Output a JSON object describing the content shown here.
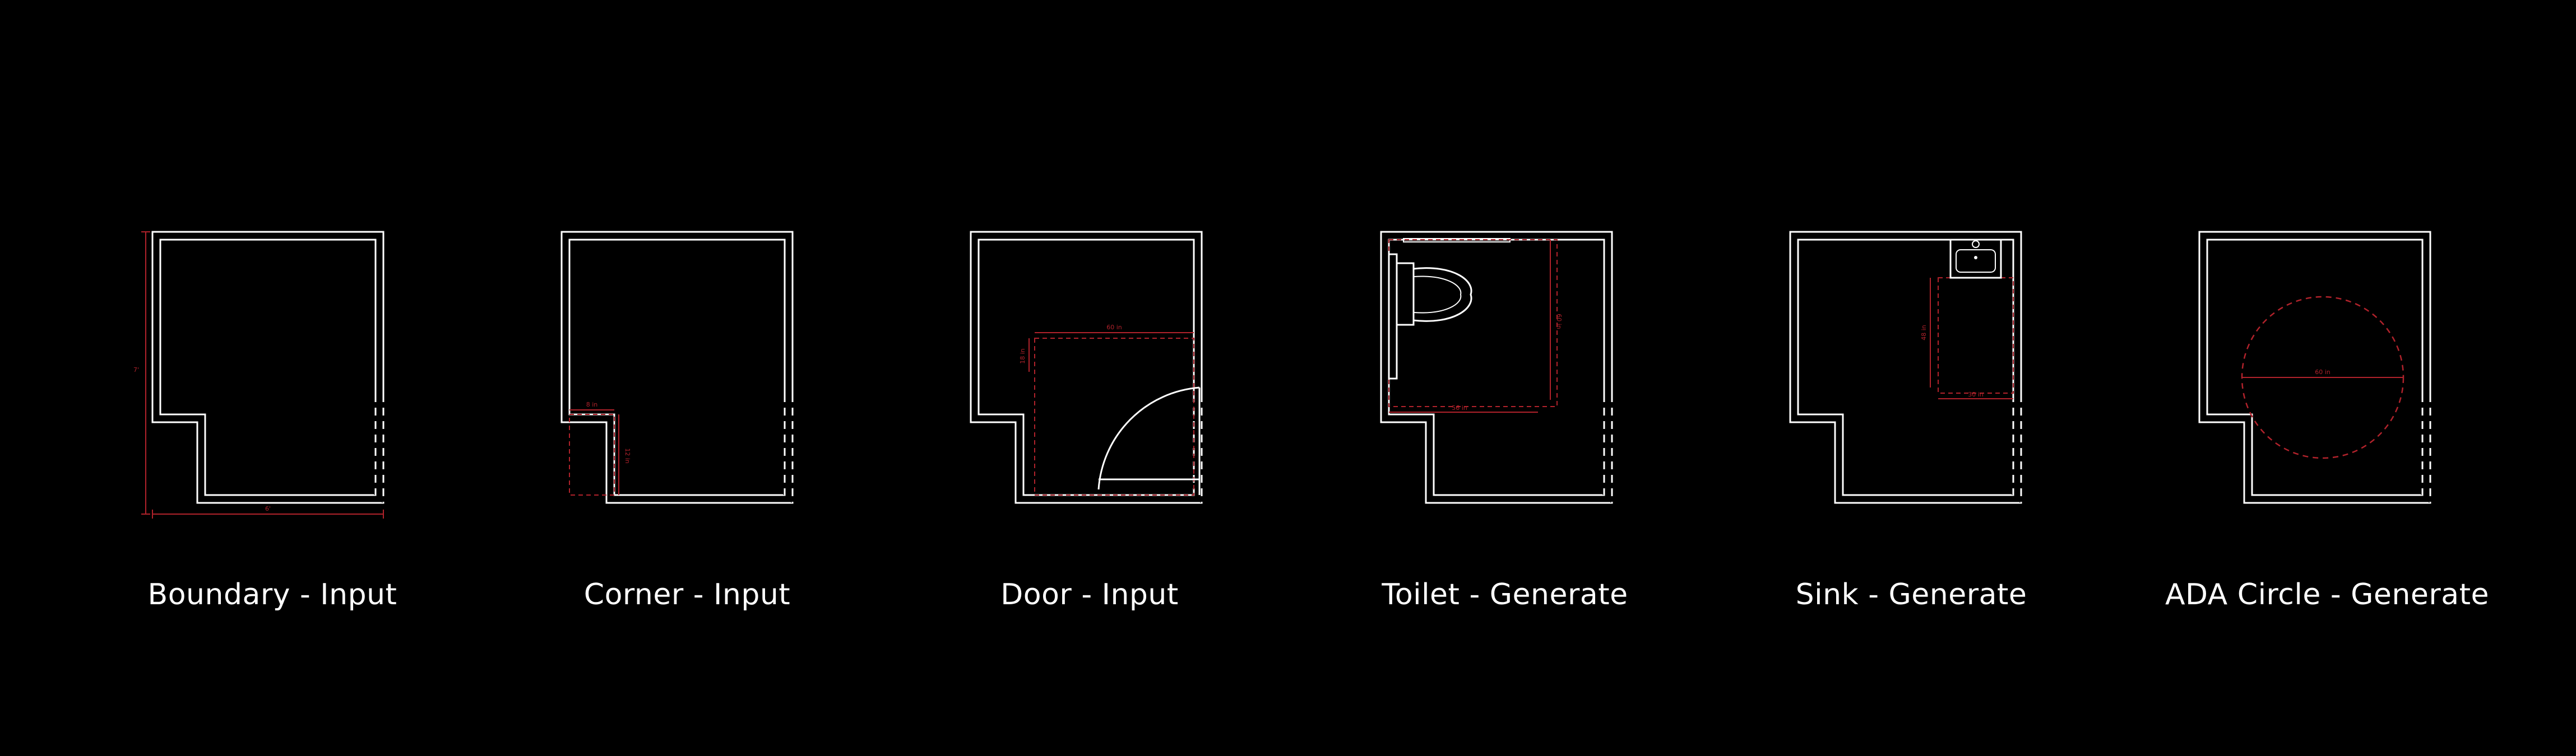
{
  "colors": {
    "background": "#000000",
    "wall": "#ffffff",
    "dimension": "#b0222b",
    "caption": "#ffffff"
  },
  "panels": [
    {
      "id": "boundary",
      "caption": "Boundary - Input",
      "dims": {
        "width": "6'",
        "height": "7'"
      }
    },
    {
      "id": "corner",
      "caption": "Corner - Input",
      "dims": {
        "width": "8 in",
        "height": "12 in"
      }
    },
    {
      "id": "door",
      "caption": "Door - Input",
      "dims": {
        "width": "60 in",
        "height": "18 in"
      }
    },
    {
      "id": "toilet",
      "caption": "Toilet - Generate",
      "dims": {
        "width": "56 in",
        "height": "60 in"
      }
    },
    {
      "id": "sink",
      "caption": "Sink - Generate",
      "dims": {
        "width": "30 in",
        "height": "48 in"
      }
    },
    {
      "id": "ada",
      "caption": "ADA Circle - Generate",
      "dims": {
        "diameter": "60 in"
      }
    }
  ]
}
